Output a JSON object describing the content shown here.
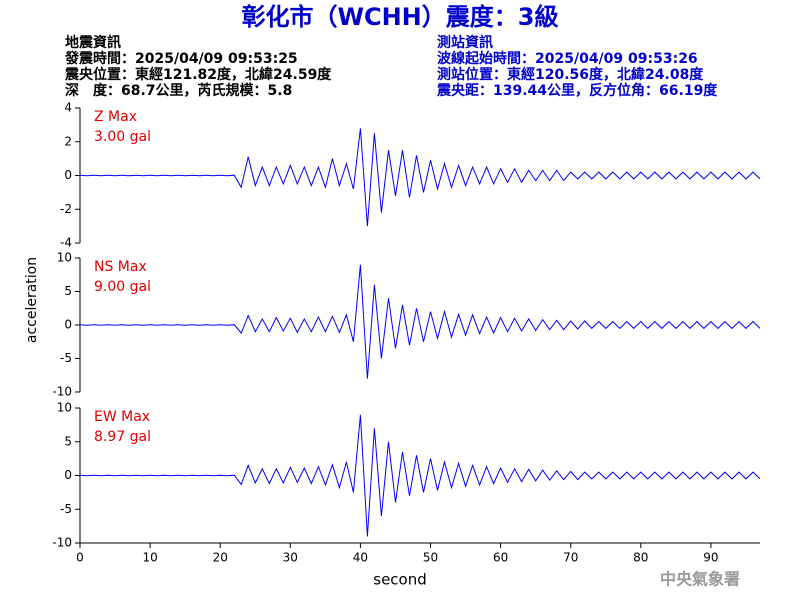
{
  "header": {
    "title": "彰化市（WCHH）震度：3級",
    "event": [
      "地震資訊",
      "發震時間：2025/04/09 09:53:25",
      "震央位置：東經121.82度，北緯24.59度",
      "深　度：68.7公里，芮氏規模：5.8"
    ],
    "station": [
      "測站資訊",
      "波線起始時間：2025/04/09 09:53:26",
      "測站位置：東經120.56度，北緯24.08度",
      "震央距：139.44公里，反方位角：66.19度"
    ],
    "footer": "中央氣象署"
  },
  "chart_data": [
    {
      "type": "line",
      "label": "Z Max",
      "max": "3.00 gal",
      "color": "#0000ff",
      "ylim": [
        -4,
        4
      ],
      "yticks": [
        -4,
        -2,
        0,
        2,
        4
      ],
      "xlim": [
        0,
        97
      ],
      "x": [
        0,
        1,
        2,
        3,
        4,
        5,
        6,
        7,
        8,
        9,
        10,
        11,
        12,
        13,
        14,
        15,
        16,
        17,
        18,
        19,
        20,
        21,
        22,
        23,
        24,
        25,
        26,
        27,
        28,
        29,
        30,
        31,
        32,
        33,
        34,
        35,
        36,
        37,
        38,
        39,
        40,
        41,
        42,
        43,
        44,
        45,
        46,
        47,
        48,
        49,
        50,
        51,
        52,
        53,
        54,
        55,
        56,
        57,
        58,
        59,
        60,
        61,
        62,
        63,
        64,
        65,
        66,
        67,
        68,
        69,
        70,
        71,
        72,
        73,
        74,
        75,
        76,
        77,
        78,
        79,
        80,
        81,
        82,
        83,
        84,
        85,
        86,
        87,
        88,
        89,
        90,
        91,
        92,
        93,
        94,
        95,
        96,
        97
      ],
      "values": [
        0.02,
        -0.02,
        0.02,
        -0.02,
        0.02,
        -0.02,
        0.02,
        -0.02,
        0.02,
        -0.02,
        0.02,
        -0.02,
        0.02,
        -0.02,
        0.02,
        -0.02,
        0.02,
        -0.02,
        0.02,
        -0.02,
        0.02,
        -0.02,
        0.02,
        -0.7,
        1.1,
        -0.6,
        0.5,
        -0.6,
        0.5,
        -0.5,
        0.6,
        -0.5,
        0.5,
        -0.6,
        0.5,
        -0.7,
        1.0,
        -0.6,
        0.7,
        -0.8,
        2.8,
        -3.0,
        2.5,
        -2.2,
        1.5,
        -1.2,
        1.5,
        -1.3,
        1.2,
        -1.0,
        0.9,
        -0.8,
        0.7,
        -0.7,
        0.6,
        -0.6,
        0.5,
        -0.5,
        0.5,
        -0.5,
        0.4,
        -0.4,
        0.4,
        -0.4,
        0.3,
        -0.3,
        0.3,
        -0.3,
        0.3,
        -0.3,
        0.2,
        -0.2,
        0.2,
        -0.2,
        0.2,
        -0.2,
        0.2,
        -0.2,
        0.2,
        -0.2,
        0.2,
        -0.2,
        0.2,
        -0.2,
        0.2,
        -0.2,
        0.2,
        -0.2,
        0.2,
        -0.2,
        0.2,
        -0.2,
        0.2,
        -0.2,
        0.2,
        -0.2,
        0.2,
        -0.2
      ]
    },
    {
      "type": "line",
      "label": "NS Max",
      "max": "9.00 gal",
      "color": "#0000ff",
      "ylim": [
        -10,
        10
      ],
      "yticks": [
        -10,
        -5,
        0,
        5,
        10
      ],
      "xlim": [
        0,
        97
      ],
      "ylabel": "acceleration",
      "x": [
        0,
        1,
        2,
        3,
        4,
        5,
        6,
        7,
        8,
        9,
        10,
        11,
        12,
        13,
        14,
        15,
        16,
        17,
        18,
        19,
        20,
        21,
        22,
        23,
        24,
        25,
        26,
        27,
        28,
        29,
        30,
        31,
        32,
        33,
        34,
        35,
        36,
        37,
        38,
        39,
        40,
        41,
        42,
        43,
        44,
        45,
        46,
        47,
        48,
        49,
        50,
        51,
        52,
        53,
        54,
        55,
        56,
        57,
        58,
        59,
        60,
        61,
        62,
        63,
        64,
        65,
        66,
        67,
        68,
        69,
        70,
        71,
        72,
        73,
        74,
        75,
        76,
        77,
        78,
        79,
        80,
        81,
        82,
        83,
        84,
        85,
        86,
        87,
        88,
        89,
        90,
        91,
        92,
        93,
        94,
        95,
        96,
        97
      ],
      "values": [
        0.05,
        -0.05,
        0.05,
        -0.05,
        0.05,
        -0.05,
        0.05,
        -0.05,
        0.05,
        -0.05,
        0.05,
        -0.05,
        0.05,
        -0.05,
        0.05,
        -0.05,
        0.05,
        -0.05,
        0.05,
        -0.05,
        0.05,
        -0.05,
        0.05,
        -1.2,
        1.4,
        -1.0,
        0.9,
        -1.0,
        1.1,
        -0.9,
        1.0,
        -1.1,
        0.9,
        -1.0,
        1.2,
        -1.0,
        1.3,
        -1.1,
        1.5,
        -2.5,
        9.0,
        -8.0,
        6.0,
        -5.0,
        4.0,
        -3.5,
        3.0,
        -3.0,
        2.5,
        -2.5,
        2.0,
        -2.0,
        2.0,
        -1.8,
        1.6,
        -1.5,
        1.5,
        -1.3,
        1.2,
        -1.2,
        1.1,
        -1.0,
        1.0,
        -0.9,
        0.9,
        -0.8,
        0.8,
        -0.7,
        0.7,
        -0.7,
        0.6,
        -0.6,
        0.6,
        -0.5,
        0.5,
        -0.5,
        0.5,
        -0.5,
        0.5,
        -0.5,
        0.5,
        -0.5,
        0.5,
        -0.5,
        0.5,
        -0.5,
        0.5,
        -0.5,
        0.5,
        -0.5,
        0.5,
        -0.5,
        0.5,
        -0.5,
        0.5,
        -0.5,
        0.5,
        -0.5
      ]
    },
    {
      "type": "line",
      "label": "EW Max",
      "max": "8.97 gal",
      "color": "#0000ff",
      "ylim": [
        -10,
        10
      ],
      "yticks": [
        -10,
        -5,
        0,
        5,
        10
      ],
      "xlim": [
        0,
        97
      ],
      "xlabel": "second",
      "xticks": [
        0,
        10,
        20,
        30,
        40,
        50,
        60,
        70,
        80,
        90
      ],
      "x": [
        0,
        1,
        2,
        3,
        4,
        5,
        6,
        7,
        8,
        9,
        10,
        11,
        12,
        13,
        14,
        15,
        16,
        17,
        18,
        19,
        20,
        21,
        22,
        23,
        24,
        25,
        26,
        27,
        28,
        29,
        30,
        31,
        32,
        33,
        34,
        35,
        36,
        37,
        38,
        39,
        40,
        41,
        42,
        43,
        44,
        45,
        46,
        47,
        48,
        49,
        50,
        51,
        52,
        53,
        54,
        55,
        56,
        57,
        58,
        59,
        60,
        61,
        62,
        63,
        64,
        65,
        66,
        67,
        68,
        69,
        70,
        71,
        72,
        73,
        74,
        75,
        76,
        77,
        78,
        79,
        80,
        81,
        82,
        83,
        84,
        85,
        86,
        87,
        88,
        89,
        90,
        91,
        92,
        93,
        94,
        95,
        96,
        97
      ],
      "values": [
        0.05,
        -0.05,
        0.05,
        -0.05,
        0.05,
        -0.05,
        0.05,
        -0.05,
        0.05,
        -0.05,
        0.05,
        -0.05,
        0.05,
        -0.05,
        0.05,
        -0.05,
        0.05,
        -0.05,
        0.05,
        -0.05,
        0.05,
        -0.05,
        0.05,
        -1.3,
        1.5,
        -1.1,
        1.0,
        -1.2,
        1.0,
        -1.1,
        1.2,
        -1.0,
        1.1,
        -1.2,
        1.3,
        -1.4,
        1.6,
        -1.8,
        2.0,
        -2.5,
        9.0,
        -9.0,
        7.0,
        -6.0,
        5.0,
        -4.0,
        3.5,
        -3.0,
        3.0,
        -2.5,
        2.5,
        -2.2,
        2.0,
        -1.8,
        1.8,
        -1.6,
        1.5,
        -1.4,
        1.3,
        -1.2,
        1.1,
        -1.0,
        1.0,
        -0.9,
        0.9,
        -0.8,
        0.8,
        -0.7,
        0.7,
        -0.6,
        0.6,
        -0.6,
        0.5,
        -0.5,
        0.5,
        -0.5,
        0.5,
        -0.5,
        0.5,
        -0.5,
        0.5,
        -0.5,
        0.5,
        -0.5,
        0.5,
        -0.5,
        0.5,
        -0.5,
        0.5,
        -0.5,
        0.5,
        -0.5,
        0.5,
        -0.5,
        0.5,
        -0.5,
        0.5,
        -0.5
      ]
    }
  ]
}
